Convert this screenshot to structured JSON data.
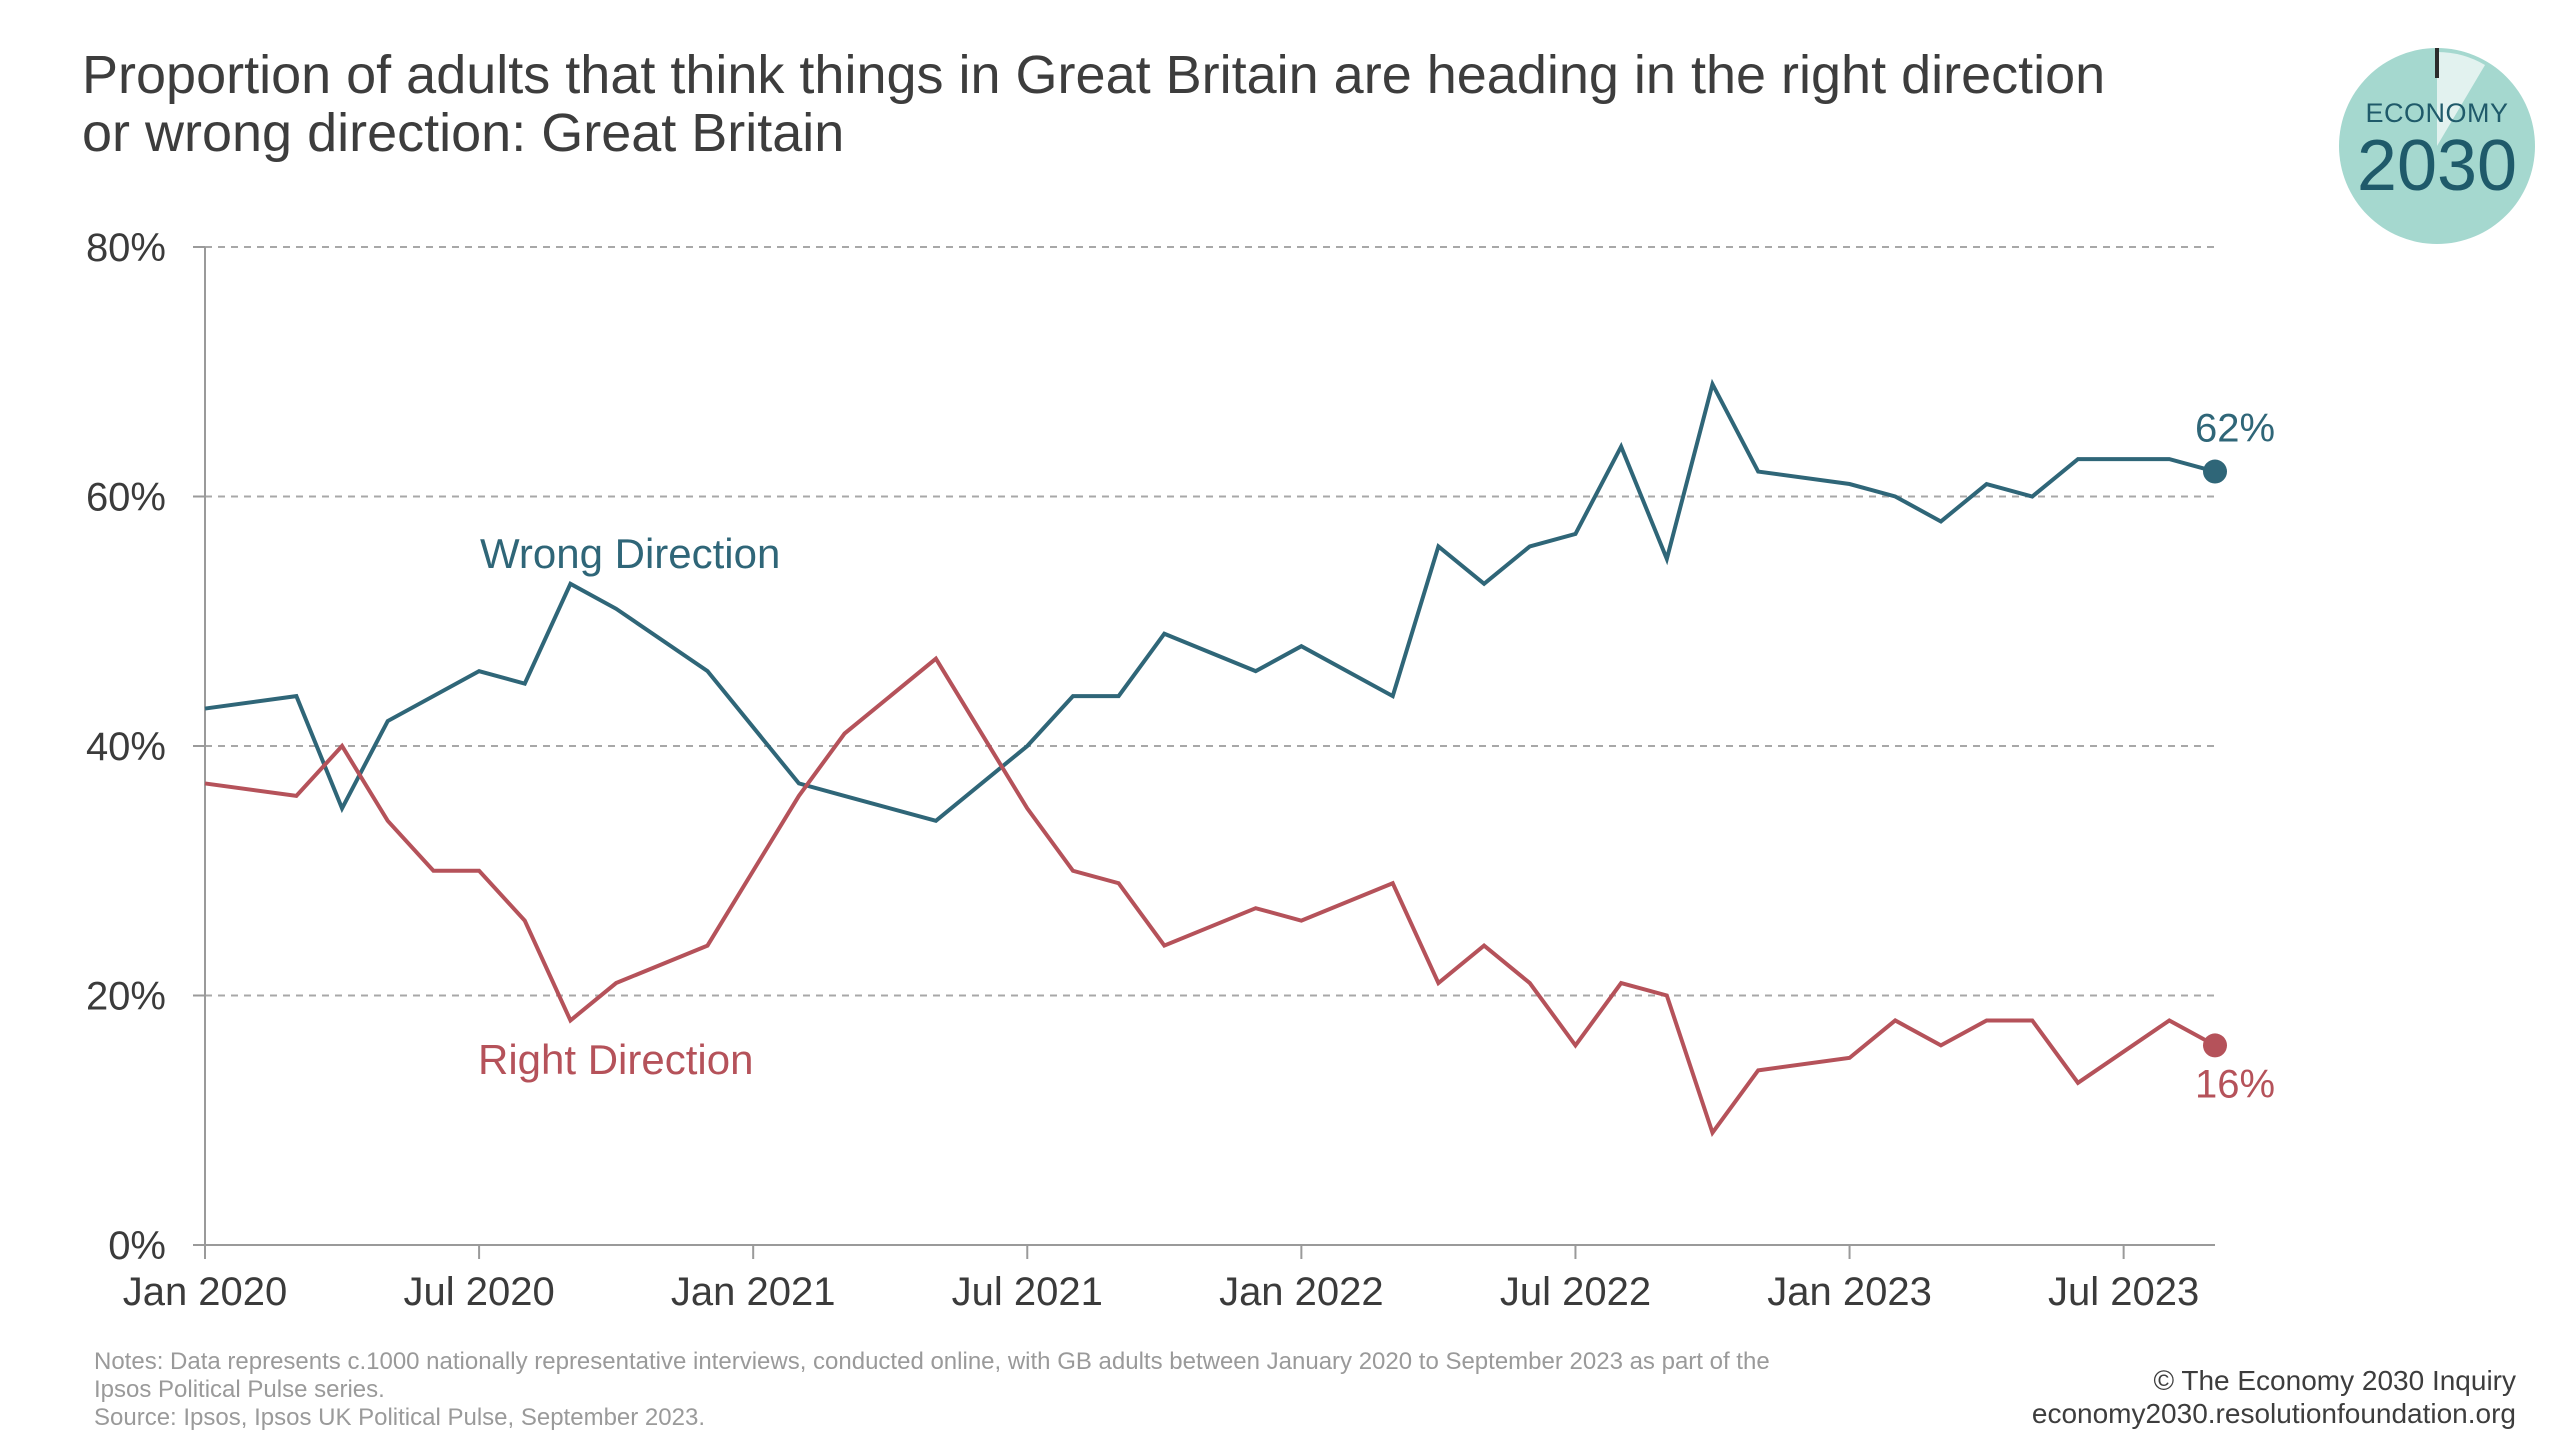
{
  "header": {
    "title_line1": "Proportion of adults that think things in Great Britain are heading in the right direction",
    "title_line2": "or wrong direction: Great Britain"
  },
  "logo": {
    "top_text": "ECONOMY",
    "big_text": "2030",
    "color_fill": "#a5d8cf",
    "color_text": "#1f5a6a"
  },
  "footer": {
    "notes_line1": "Notes: Data represents c.1000 nationally representative interviews, conducted online, with GB adults between January 2020 to September 2023 as part of the",
    "notes_line2": "Ipsos Political Pulse series.",
    "source": "Source: Ipsos, Ipsos UK Political Pulse, September 2023.",
    "credit": "© The Economy 2030 Inquiry",
    "website": "economy2030.resolutionfoundation.org"
  },
  "chart_data": {
    "type": "line",
    "ylim": [
      0,
      80
    ],
    "y_ticks": [
      0,
      20,
      40,
      60,
      80
    ],
    "y_tick_labels": [
      "0%",
      "20%",
      "40%",
      "60%",
      "80%"
    ],
    "x_ticks": [
      "2020-01",
      "2020-07",
      "2021-01",
      "2021-07",
      "2022-01",
      "2022-07",
      "2023-01",
      "2023-07"
    ],
    "x_tick_labels": [
      "Jan 2020",
      "Jul 2020",
      "Jan 2021",
      "Jul 2021",
      "Jan 2022",
      "Jul 2022",
      "Jan 2023",
      "Jul 2023"
    ],
    "x_range": [
      "2020-01",
      "2023-09"
    ],
    "grid": "horizontal dashed",
    "series": [
      {
        "name": "Wrong Direction",
        "color": "#2f6678",
        "end_label": "62%",
        "points": [
          [
            "2020-01",
            43
          ],
          [
            "2020-03",
            44
          ],
          [
            "2020-04",
            35
          ],
          [
            "2020-05",
            42
          ],
          [
            "2020-07",
            46
          ],
          [
            "2020-08",
            45
          ],
          [
            "2020-09",
            53
          ],
          [
            "2020-10",
            51
          ],
          [
            "2020-12",
            46
          ],
          [
            "2021-02",
            37
          ],
          [
            "2021-03",
            36
          ],
          [
            "2021-05",
            34
          ],
          [
            "2021-07",
            40
          ],
          [
            "2021-08",
            44
          ],
          [
            "2021-09",
            44
          ],
          [
            "2021-10",
            49
          ],
          [
            "2021-12",
            46
          ],
          [
            "2022-01",
            48
          ],
          [
            "2022-03",
            44
          ],
          [
            "2022-04",
            56
          ],
          [
            "2022-05",
            53
          ],
          [
            "2022-06",
            56
          ],
          [
            "2022-07",
            57
          ],
          [
            "2022-08",
            64
          ],
          [
            "2022-09",
            55
          ],
          [
            "2022-10",
            69
          ],
          [
            "2022-11",
            62
          ],
          [
            "2023-01",
            61
          ],
          [
            "2023-02",
            60
          ],
          [
            "2023-03",
            58
          ],
          [
            "2023-04",
            61
          ],
          [
            "2023-05",
            60
          ],
          [
            "2023-06",
            63
          ],
          [
            "2023-08",
            63
          ],
          [
            "2023-09",
            62
          ]
        ]
      },
      {
        "name": "Right Direction",
        "color": "#b5525a",
        "end_label": "16%",
        "points": [
          [
            "2020-01",
            37
          ],
          [
            "2020-03",
            36
          ],
          [
            "2020-04",
            40
          ],
          [
            "2020-05",
            34
          ],
          [
            "2020-06",
            30
          ],
          [
            "2020-07",
            30
          ],
          [
            "2020-08",
            26
          ],
          [
            "2020-09",
            18
          ],
          [
            "2020-10",
            21
          ],
          [
            "2020-12",
            24
          ],
          [
            "2021-02",
            36
          ],
          [
            "2021-03",
            41
          ],
          [
            "2021-05",
            47
          ],
          [
            "2021-07",
            35
          ],
          [
            "2021-08",
            30
          ],
          [
            "2021-09",
            29
          ],
          [
            "2021-10",
            24
          ],
          [
            "2021-12",
            27
          ],
          [
            "2022-01",
            26
          ],
          [
            "2022-03",
            29
          ],
          [
            "2022-04",
            21
          ],
          [
            "2022-05",
            24
          ],
          [
            "2022-06",
            21
          ],
          [
            "2022-07",
            16
          ],
          [
            "2022-08",
            21
          ],
          [
            "2022-09",
            20
          ],
          [
            "2022-10",
            9
          ],
          [
            "2022-11",
            14
          ],
          [
            "2023-01",
            15
          ],
          [
            "2023-02",
            18
          ],
          [
            "2023-03",
            16
          ],
          [
            "2023-04",
            18
          ],
          [
            "2023-05",
            18
          ],
          [
            "2023-06",
            13
          ],
          [
            "2023-08",
            18
          ],
          [
            "2023-09",
            16
          ]
        ]
      }
    ]
  }
}
